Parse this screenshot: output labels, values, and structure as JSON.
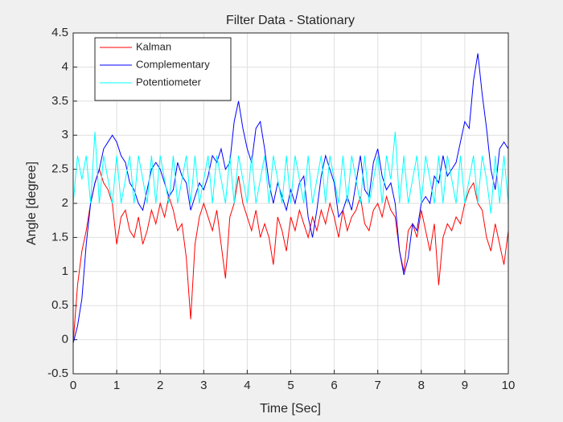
{
  "chart_data": {
    "type": "line",
    "title": "Filter Data - Stationary",
    "xlabel": "Time [Sec]",
    "ylabel": "Angle [degree]",
    "x": [
      0,
      0.1,
      0.2,
      0.3,
      0.4,
      0.5,
      0.6,
      0.7,
      0.8,
      0.9,
      1,
      1.1,
      1.2,
      1.3,
      1.4,
      1.5,
      1.6,
      1.7,
      1.8,
      1.9,
      2,
      2.1,
      2.2,
      2.3,
      2.4,
      2.5,
      2.6,
      2.7,
      2.8,
      2.9,
      3,
      3.1,
      3.2,
      3.3,
      3.4,
      3.5,
      3.6,
      3.7,
      3.8,
      3.9,
      4,
      4.1,
      4.2,
      4.3,
      4.4,
      4.5,
      4.6,
      4.7,
      4.8,
      4.9,
      5,
      5.1,
      5.2,
      5.3,
      5.4,
      5.5,
      5.6,
      5.7,
      5.8,
      5.9,
      6,
      6.1,
      6.2,
      6.3,
      6.4,
      6.5,
      6.6,
      6.7,
      6.8,
      6.9,
      7,
      7.1,
      7.2,
      7.3,
      7.4,
      7.5,
      7.6,
      7.7,
      7.8,
      7.9,
      8,
      8.1,
      8.2,
      8.3,
      8.4,
      8.5,
      8.6,
      8.7,
      8.8,
      8.9,
      9,
      9.1,
      9.2,
      9.3,
      9.4,
      9.5,
      9.6,
      9.7,
      9.8,
      9.9,
      10
    ],
    "series": [
      {
        "name": "Kalman",
        "color": "#ff0000",
        "values": [
          -0.05,
          0.8,
          1.3,
          1.6,
          2.0,
          2.3,
          2.5,
          2.3,
          2.2,
          2.0,
          1.4,
          1.8,
          1.9,
          1.6,
          1.5,
          1.8,
          1.4,
          1.6,
          1.9,
          1.7,
          2.0,
          1.8,
          2.1,
          1.9,
          1.6,
          1.7,
          1.2,
          0.3,
          1.4,
          1.8,
          2.0,
          1.8,
          1.6,
          1.9,
          1.4,
          0.9,
          1.8,
          2.0,
          2.4,
          2.0,
          1.8,
          1.6,
          1.9,
          1.5,
          1.7,
          1.5,
          1.1,
          1.8,
          1.6,
          1.3,
          1.8,
          1.6,
          1.9,
          1.7,
          1.5,
          1.8,
          1.6,
          1.9,
          1.7,
          2.0,
          1.8,
          1.5,
          1.9,
          1.6,
          1.8,
          1.9,
          2.1,
          1.7,
          1.6,
          1.9,
          2.0,
          1.8,
          2.1,
          1.9,
          1.8,
          1.3,
          1.0,
          1.6,
          1.7,
          1.5,
          1.9,
          1.6,
          1.3,
          1.7,
          0.8,
          1.5,
          1.7,
          1.6,
          1.8,
          1.7,
          2.0,
          2.2,
          2.3,
          2.0,
          1.9,
          1.5,
          1.3,
          1.7,
          1.4,
          1.1,
          1.6
        ]
      },
      {
        "name": "Complementary",
        "color": "#0000ff",
        "values": [
          -0.05,
          0.2,
          0.6,
          1.4,
          2.0,
          2.3,
          2.5,
          2.8,
          2.9,
          3.0,
          2.9,
          2.7,
          2.6,
          2.3,
          2.2,
          2.0,
          1.9,
          2.2,
          2.5,
          2.6,
          2.5,
          2.3,
          2.1,
          2.2,
          2.6,
          2.4,
          2.3,
          1.9,
          2.1,
          2.3,
          2.2,
          2.4,
          2.7,
          2.6,
          2.8,
          2.5,
          2.6,
          3.2,
          3.5,
          3.1,
          2.8,
          2.6,
          3.1,
          3.2,
          2.8,
          2.3,
          2.0,
          2.3,
          2.1,
          1.9,
          2.2,
          2.0,
          2.3,
          2.4,
          1.8,
          1.5,
          1.9,
          2.4,
          2.7,
          2.5,
          2.3,
          1.8,
          1.9,
          2.1,
          1.9,
          2.3,
          2.7,
          2.2,
          2.1,
          2.6,
          2.8,
          2.4,
          2.2,
          2.3,
          2.0,
          1.3,
          0.95,
          1.2,
          1.7,
          1.6,
          2.0,
          2.1,
          2.0,
          2.4,
          2.3,
          2.7,
          2.4,
          2.5,
          2.6,
          2.9,
          3.2,
          3.1,
          3.8,
          4.2,
          3.6,
          3.1,
          2.5,
          2.2,
          2.8,
          2.9,
          2.8
        ]
      },
      {
        "name": "Potentiometer",
        "color": "#00ffff",
        "values": [
          2.0,
          2.7,
          2.35,
          2.7,
          2.0,
          3.05,
          2.0,
          2.7,
          2.35,
          2.0,
          2.7,
          2.0,
          2.35,
          2.7,
          2.0,
          2.7,
          2.35,
          2.0,
          2.7,
          2.0,
          2.7,
          2.35,
          2.0,
          2.7,
          2.0,
          2.35,
          2.7,
          2.0,
          2.7,
          2.0,
          2.35,
          2.7,
          2.0,
          2.7,
          2.35,
          2.0,
          2.7,
          2.0,
          2.7,
          2.35,
          2.0,
          2.7,
          2.0,
          2.35,
          2.7,
          2.0,
          2.7,
          2.35,
          2.0,
          2.7,
          2.0,
          2.7,
          2.35,
          2.0,
          2.7,
          2.0,
          2.35,
          2.7,
          2.0,
          2.7,
          2.35,
          2.0,
          2.7,
          2.0,
          2.7,
          2.35,
          2.0,
          2.7,
          2.0,
          2.35,
          2.7,
          2.0,
          2.7,
          2.35,
          3.05,
          2.0,
          2.7,
          2.0,
          2.35,
          2.7,
          2.0,
          2.7,
          2.35,
          2.0,
          2.7,
          2.0,
          2.7,
          2.35,
          2.0,
          2.7,
          2.0,
          2.35,
          2.7,
          2.0,
          2.7,
          2.35,
          1.85,
          2.7,
          2.0,
          2.7,
          2.0
        ]
      }
    ],
    "xlim": [
      0,
      10
    ],
    "xticks": [
      0,
      1,
      2,
      3,
      4,
      5,
      6,
      7,
      8,
      9,
      10
    ],
    "ylim": [
      -0.5,
      4.5
    ],
    "yticks": [
      -0.5,
      0,
      0.5,
      1,
      1.5,
      2,
      2.5,
      3,
      3.5,
      4,
      4.5
    ],
    "grid": true,
    "legend": "northwest"
  }
}
